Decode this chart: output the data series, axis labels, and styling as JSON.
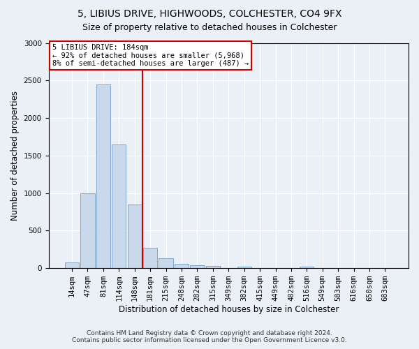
{
  "title1": "5, LIBIUS DRIVE, HIGHWOODS, COLCHESTER, CO4 9FX",
  "title2": "Size of property relative to detached houses in Colchester",
  "xlabel": "Distribution of detached houses by size in Colchester",
  "ylabel": "Number of detached properties",
  "bar_labels": [
    "14sqm",
    "47sqm",
    "81sqm",
    "114sqm",
    "148sqm",
    "181sqm",
    "215sqm",
    "248sqm",
    "282sqm",
    "315sqm",
    "349sqm",
    "382sqm",
    "415sqm",
    "449sqm",
    "482sqm",
    "516sqm",
    "549sqm",
    "583sqm",
    "616sqm",
    "650sqm",
    "683sqm"
  ],
  "bar_values": [
    75,
    1000,
    2450,
    1650,
    850,
    270,
    135,
    60,
    40,
    30,
    0,
    25,
    0,
    0,
    0,
    20,
    0,
    0,
    0,
    0,
    0
  ],
  "bar_color": "#c9d9eb",
  "bar_edge_color": "#7ea8c9",
  "vline_index": 5,
  "vline_color": "#cc0000",
  "ylim": [
    0,
    3000
  ],
  "yticks": [
    0,
    500,
    1000,
    1500,
    2000,
    2500,
    3000
  ],
  "annotation_line1": "5 LIBIUS DRIVE: 184sqm",
  "annotation_line2": "← 92% of detached houses are smaller (5,968)",
  "annotation_line3": "8% of semi-detached houses are larger (487) →",
  "annotation_box_color": "#ffffff",
  "annotation_box_edge": "#cc0000",
  "footer1": "Contains HM Land Registry data © Crown copyright and database right 2024.",
  "footer2": "Contains public sector information licensed under the Open Government Licence v3.0.",
  "background_color": "#eaf0f6",
  "plot_bg_color": "#eaf0f6",
  "grid_color": "#ffffff",
  "title1_fontsize": 10,
  "title2_fontsize": 9,
  "xlabel_fontsize": 8.5,
  "ylabel_fontsize": 8.5,
  "tick_fontsize": 7.5,
  "annot_fontsize": 7.5,
  "footer_fontsize": 6.5
}
